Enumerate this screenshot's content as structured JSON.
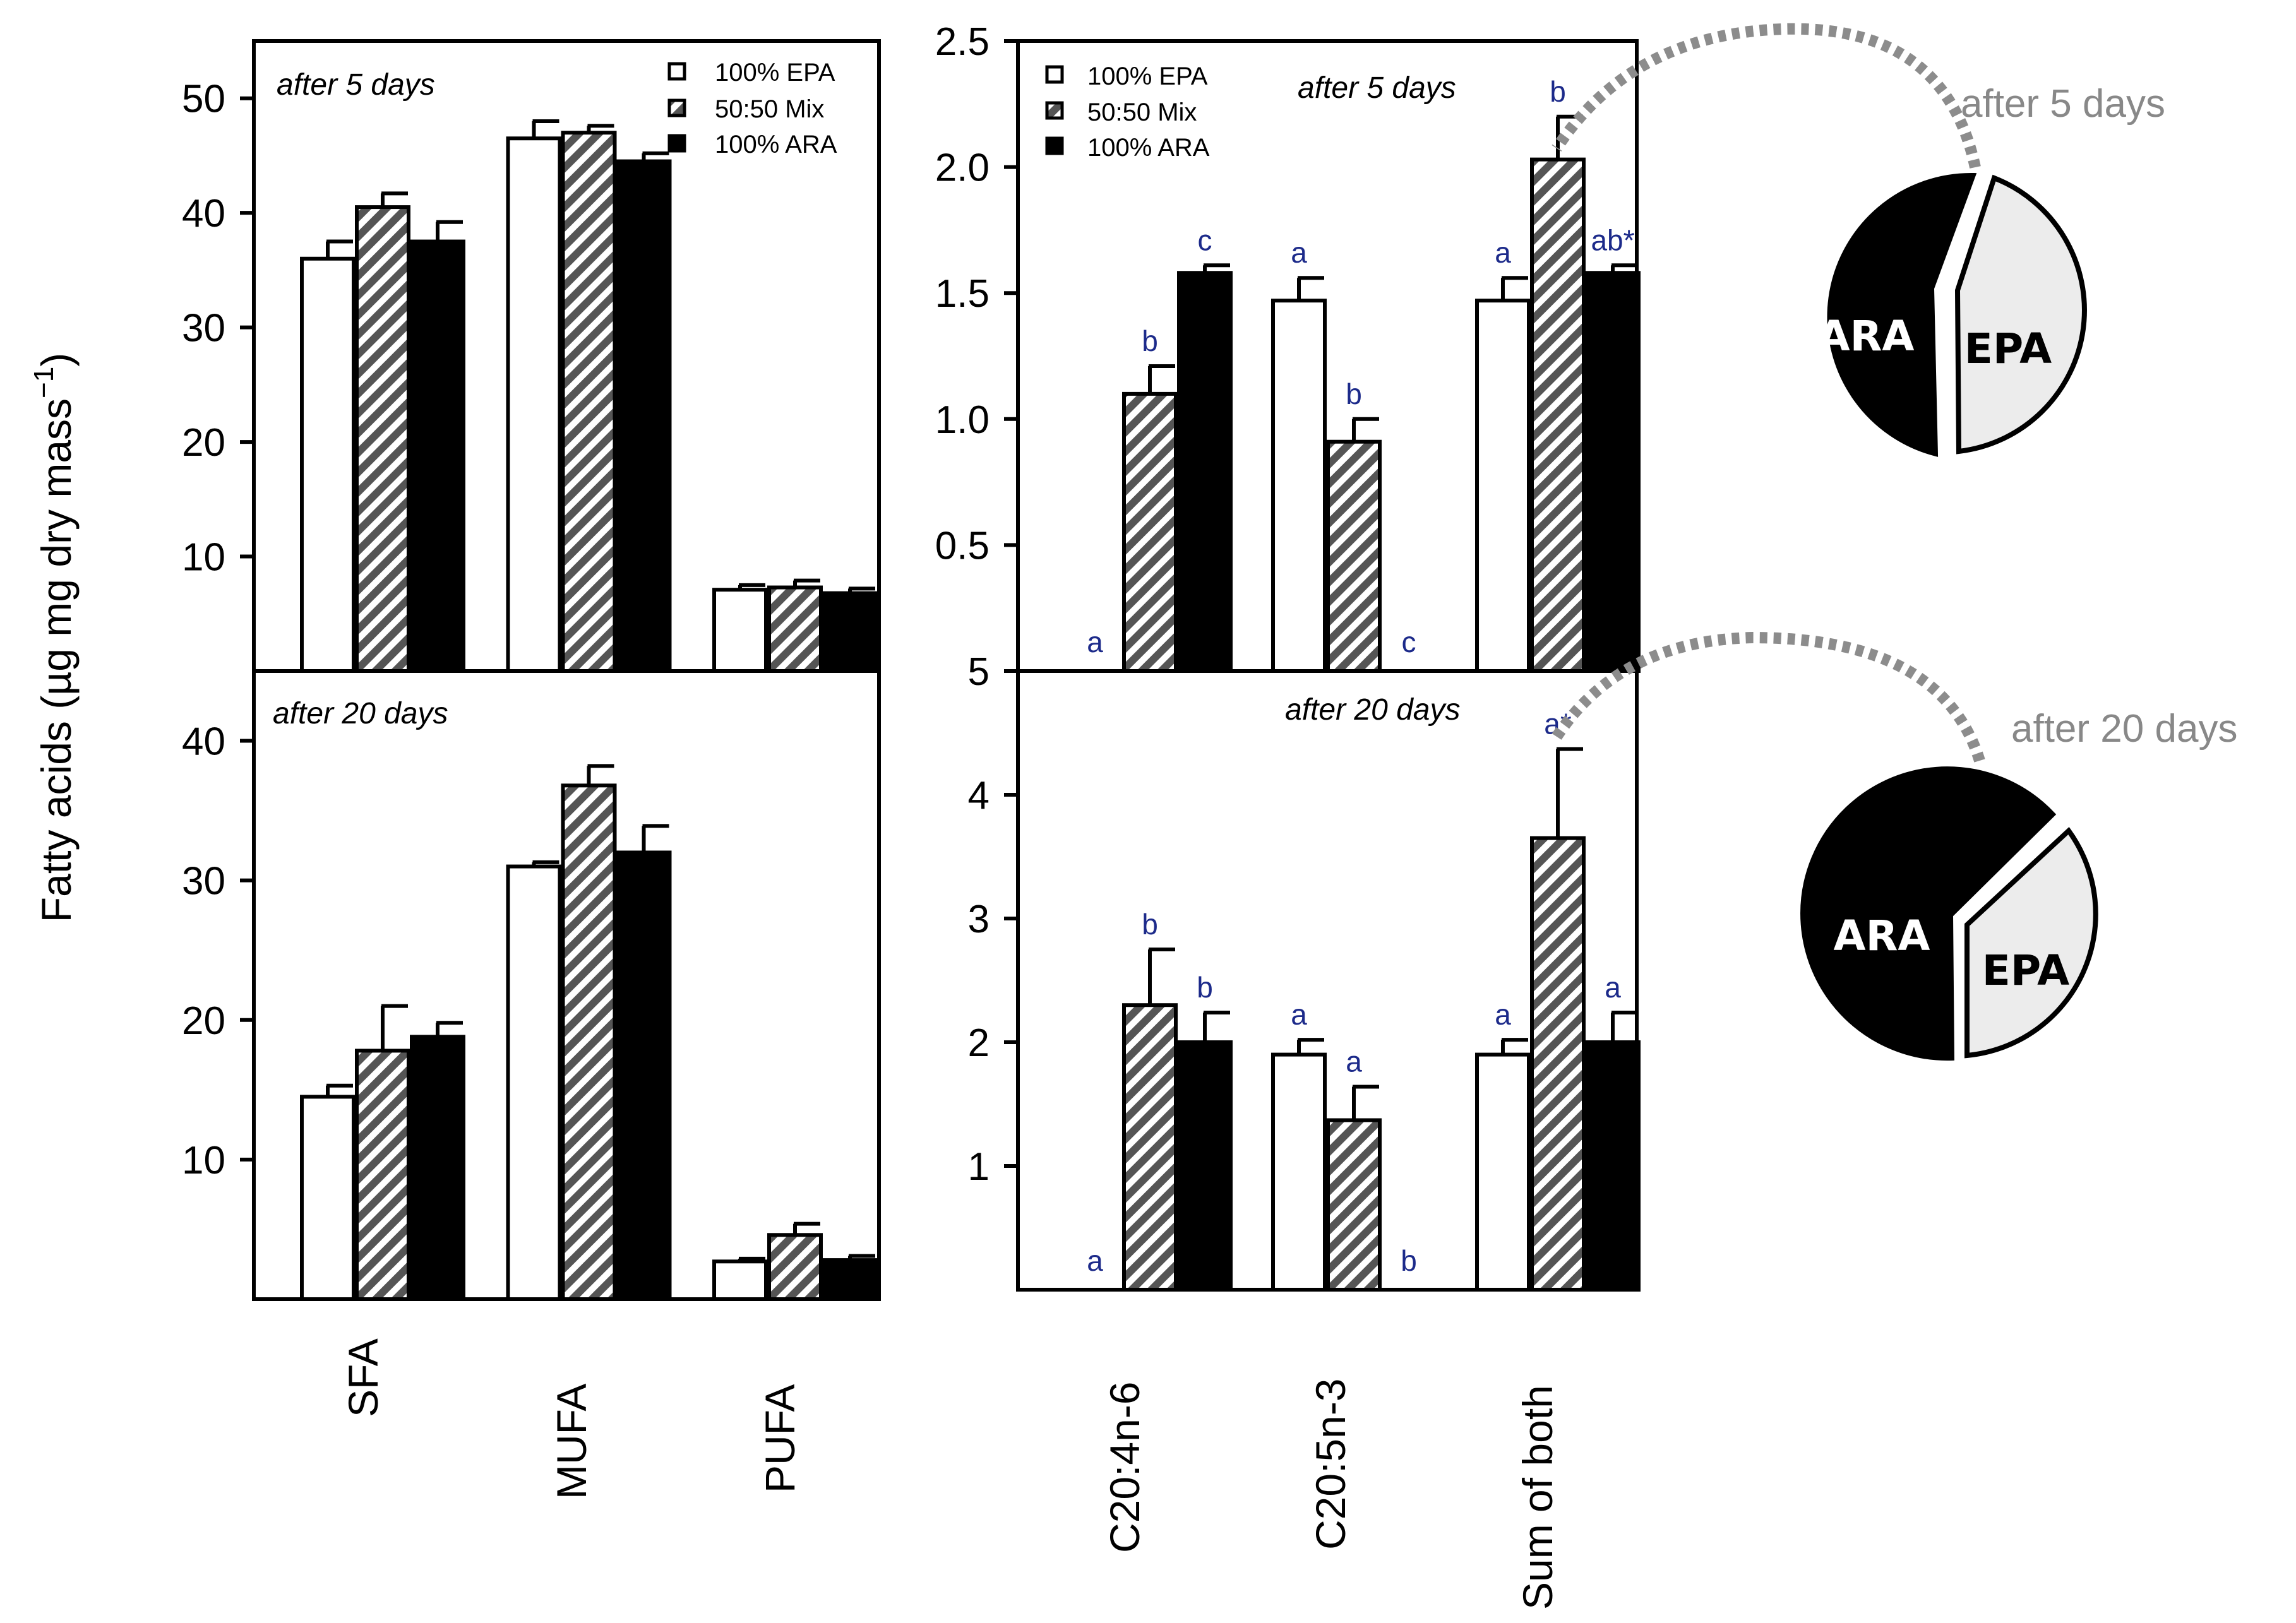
{
  "y_axis_label": "Fatty acids (µg mg dry mass",
  "y_axis_label_sup": "−1",
  "y_axis_label_end": ")",
  "legend": {
    "epa": "100% EPA",
    "mix": "50:50 Mix",
    "ara": "100% ARA"
  },
  "colors": {
    "epa": "#ffffff",
    "mix": "hatched-grey",
    "ara": "#000000",
    "sig": "#1c2a8a",
    "pie_epa": "#ececec",
    "pie_ara": "#000000",
    "dotted": "#8c8c8c"
  },
  "chart_data": [
    {
      "id": "left-top",
      "type": "bar",
      "title": "after 5 days",
      "categories": [
        "SFA",
        "MUFA",
        "PUFA"
      ],
      "ylim": [
        0,
        55
      ],
      "yticks": [
        10,
        20,
        30,
        40,
        50
      ],
      "series": [
        {
          "name": "100% EPA",
          "values": [
            36.0,
            46.5,
            7.1
          ],
          "errors": [
            1.5,
            1.5,
            0.4
          ]
        },
        {
          "name": "50:50 Mix",
          "values": [
            40.5,
            47.0,
            7.3
          ],
          "errors": [
            1.2,
            0.6,
            0.6
          ]
        },
        {
          "name": "100% ARA",
          "values": [
            37.5,
            44.5,
            6.8
          ],
          "errors": [
            1.7,
            0.7,
            0.4
          ]
        }
      ]
    },
    {
      "id": "left-bottom",
      "type": "bar",
      "title": "after 20 days",
      "categories": [
        "SFA",
        "MUFA",
        "PUFA"
      ],
      "ylim": [
        0,
        45
      ],
      "yticks": [
        10,
        20,
        30,
        40
      ],
      "series": [
        {
          "name": "100% EPA",
          "values": [
            14.5,
            31.0,
            2.7
          ],
          "errors": [
            0.8,
            0.3,
            0.2
          ]
        },
        {
          "name": "50:50 Mix",
          "values": [
            17.8,
            36.8,
            4.6
          ],
          "errors": [
            3.2,
            1.4,
            0.8
          ]
        },
        {
          "name": "100% ARA",
          "values": [
            18.8,
            32.0,
            2.8
          ],
          "errors": [
            1.0,
            1.9,
            0.3
          ]
        }
      ]
    },
    {
      "id": "right-top",
      "type": "bar",
      "title": "after 5 days",
      "categories": [
        "C20:4n-6",
        "C20:5n-3",
        "Sum of both"
      ],
      "ylim": [
        0,
        2.5
      ],
      "yticks": [
        "0.5",
        "1.0",
        "1.5",
        "2.0",
        "2.5"
      ],
      "series": [
        {
          "name": "100% EPA",
          "values": [
            0.0,
            1.47,
            1.47
          ],
          "errors": [
            0,
            0.09,
            0.09
          ],
          "labels": [
            "a",
            "a",
            "a"
          ]
        },
        {
          "name": "50:50 Mix",
          "values": [
            1.1,
            0.91,
            2.03
          ],
          "errors": [
            0.11,
            0.09,
            0.17
          ],
          "labels": [
            "b",
            "b",
            "b"
          ]
        },
        {
          "name": "100% ARA",
          "values": [
            1.58,
            0.0,
            1.58
          ],
          "errors": [
            0.03,
            0,
            0.03
          ],
          "labels": [
            "c",
            "c",
            "ab*"
          ]
        }
      ]
    },
    {
      "id": "right-bottom",
      "type": "bar",
      "title": "after 20 days",
      "categories": [
        "C20:4n-6",
        "C20:5n-3",
        "Sum of both"
      ],
      "ylim": [
        0,
        5
      ],
      "yticks": [
        "1",
        "2",
        "3",
        "4",
        "5"
      ],
      "series": [
        {
          "name": "100% EPA",
          "values": [
            0.0,
            1.9,
            1.9
          ],
          "errors": [
            0,
            0.12,
            0.12
          ],
          "labels": [
            "a",
            "a",
            "a"
          ]
        },
        {
          "name": "50:50 Mix",
          "values": [
            2.3,
            1.37,
            3.65
          ],
          "errors": [
            0.45,
            0.27,
            0.72
          ],
          "labels": [
            "b",
            "a",
            "a*"
          ]
        },
        {
          "name": "100% ARA",
          "values": [
            2.0,
            0.0,
            2.0
          ],
          "errors": [
            0.24,
            0,
            0.24
          ],
          "labels": [
            "b",
            "b",
            "a"
          ]
        }
      ]
    }
  ],
  "pies": [
    {
      "title": "after 5 days",
      "slices": [
        {
          "label": "EPA",
          "value": 45
        },
        {
          "label": "ARA",
          "value": 55
        }
      ]
    },
    {
      "title": "after 20 days",
      "slices": [
        {
          "label": "EPA",
          "value": 40
        },
        {
          "label": "ARA",
          "value": 60
        }
      ]
    }
  ]
}
